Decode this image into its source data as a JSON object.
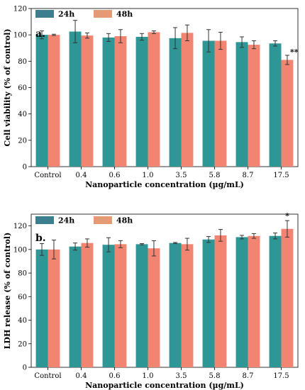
{
  "colors": {
    "s24": "#2f9696",
    "s48": "#f28472",
    "legend24": "#3b7f8f",
    "legend48": "#e49a72",
    "error": "#333333"
  },
  "chart_data": [
    {
      "type": "bar",
      "panel_label": "a.",
      "xlabel": "Nanoparticle concentration (µg/mL)",
      "ylabel": "Cell viability (% of control)",
      "ylim": [
        0,
        120
      ],
      "yticks": [
        0,
        20,
        40,
        60,
        80,
        100,
        120
      ],
      "categories": [
        "Control",
        "0.4",
        "0.6",
        "1.0",
        "3.5",
        "5.8",
        "8.7",
        "17.5"
      ],
      "legend_position": "top-left",
      "series": [
        {
          "name": "24h",
          "values": [
            100,
            102.5,
            98,
            98.5,
            97.5,
            95.5,
            94.5,
            93.5
          ],
          "errors": [
            3,
            8.5,
            3,
            2.5,
            8,
            8.5,
            4,
            2
          ]
        },
        {
          "name": "48h",
          "values": [
            100,
            99.5,
            99,
            102,
            101.5,
            95.5,
            92.5,
            81
          ],
          "errors": [
            0.5,
            2,
            5,
            1,
            6,
            6.5,
            3,
            3.5
          ]
        }
      ],
      "annotations": [
        {
          "category": "17.5",
          "series": "48h",
          "text": "**"
        }
      ]
    },
    {
      "type": "bar",
      "panel_label": "b.",
      "xlabel": "Nanoparticle concentration (µg/mL)",
      "ylabel": "LDH release (% of control)",
      "ylim": [
        0,
        130
      ],
      "yticks": [
        0,
        20,
        40,
        60,
        80,
        100,
        120
      ],
      "categories": [
        "Control",
        "0.4",
        "0.6",
        "1.0",
        "3.5",
        "5.8",
        "8.7",
        "17.5"
      ],
      "legend_position": "top-left",
      "series": [
        {
          "name": "24h",
          "values": [
            100,
            102.5,
            104,
            104.5,
            105.5,
            108.5,
            110.5,
            111.5
          ],
          "errors": [
            5,
            3,
            6,
            0.5,
            0.5,
            2.5,
            1.5,
            2.5
          ]
        },
        {
          "name": "48h",
          "values": [
            100,
            105.5,
            104.5,
            101,
            104.5,
            112,
            111.5,
            117.5
          ],
          "errors": [
            8,
            3.5,
            3,
            6.5,
            5,
            5,
            2,
            7
          ]
        }
      ],
      "annotations": [
        {
          "category": "17.5",
          "series": "48h",
          "text": "*"
        }
      ]
    }
  ]
}
